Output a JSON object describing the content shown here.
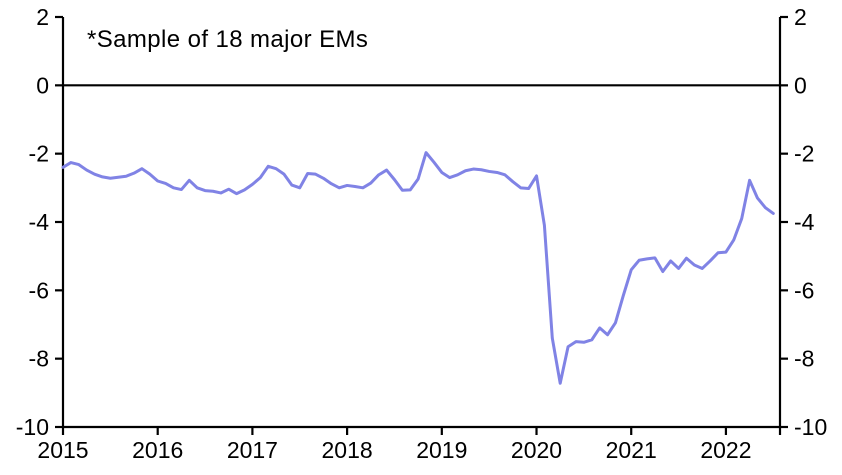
{
  "chart_data": {
    "type": "line",
    "annotation": "*Sample of 18 major EMs",
    "x_tick_labels": [
      "2015",
      "2016",
      "2017",
      "2018",
      "2019",
      "2020",
      "2021",
      "2022"
    ],
    "y_ticks": [
      2,
      0,
      -2,
      -4,
      -6,
      -8,
      -10
    ],
    "ylim": [
      -10,
      2
    ],
    "xlim_years": [
      2015.0,
      2022.571
    ],
    "points_per_year": 12,
    "grid": false,
    "zero_line": true,
    "legend_position": "none",
    "line_color": "#8083E5",
    "axis_color": "#000000",
    "background_color": "#FFFFFF",
    "series": [
      {
        "start": "2015-01",
        "end": "2022-07",
        "values": [
          -2.4,
          -2.26,
          -2.32,
          -2.48,
          -2.6,
          -2.68,
          -2.72,
          -2.69,
          -2.66,
          -2.57,
          -2.44,
          -2.6,
          -2.8,
          -2.87,
          -3.0,
          -3.05,
          -2.78,
          -3.0,
          -3.08,
          -3.1,
          -3.15,
          -3.04,
          -3.17,
          -3.06,
          -2.9,
          -2.7,
          -2.37,
          -2.44,
          -2.6,
          -2.92,
          -3.0,
          -2.58,
          -2.6,
          -2.72,
          -2.88,
          -3.0,
          -2.93,
          -2.96,
          -3.0,
          -2.86,
          -2.62,
          -2.48,
          -2.76,
          -3.07,
          -3.06,
          -2.74,
          -1.97,
          -2.25,
          -2.55,
          -2.7,
          -2.62,
          -2.5,
          -2.45,
          -2.47,
          -2.52,
          -2.55,
          -2.62,
          -2.82,
          -3.0,
          -3.02,
          -2.65,
          -4.1,
          -7.4,
          -8.72,
          -7.65,
          -7.5,
          -7.52,
          -7.45,
          -7.1,
          -7.3,
          -6.95,
          -6.15,
          -5.4,
          -5.12,
          -5.08,
          -5.05,
          -5.45,
          -5.14,
          -5.36,
          -5.06,
          -5.26,
          -5.36,
          -5.14,
          -4.9,
          -4.88,
          -4.52,
          -3.9,
          -2.78,
          -3.3,
          -3.58,
          -3.75
        ]
      }
    ]
  }
}
